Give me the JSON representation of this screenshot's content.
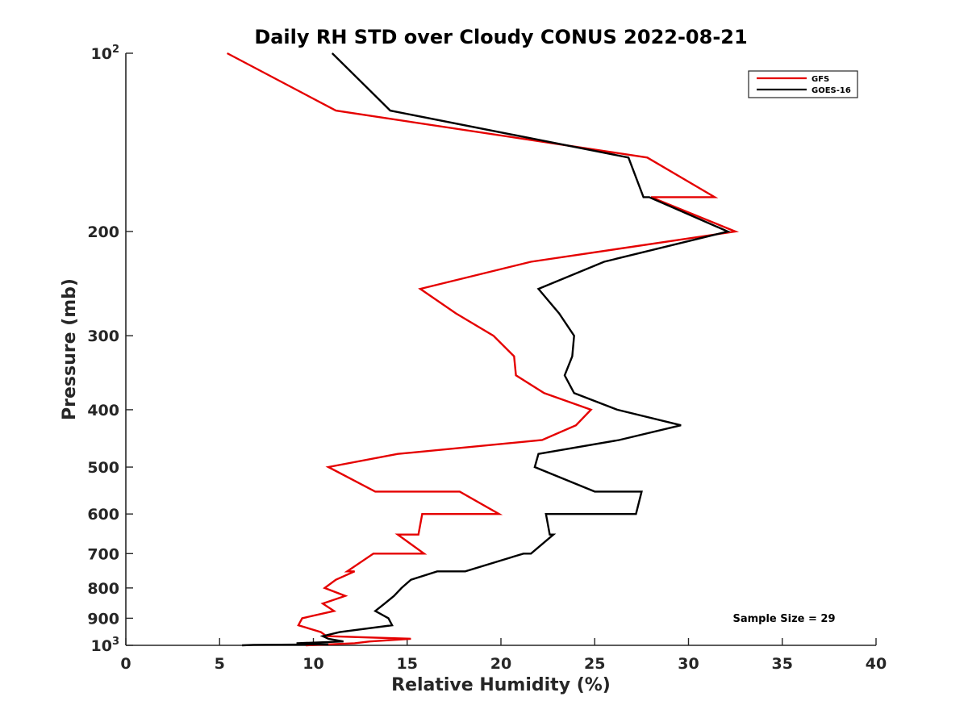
{
  "chart_data": {
    "type": "line",
    "title": "Daily RH STD over Cloudy CONUS 2022-08-21",
    "xlabel": "Relative Humidity (%)",
    "ylabel": "Pressure (mb)",
    "xlim": [
      0,
      40
    ],
    "ylim": [
      100,
      1000
    ],
    "y_scale": "log",
    "y_reversed": true,
    "x_ticks": [
      "0",
      "5",
      "10",
      "15",
      "20",
      "25",
      "30",
      "35",
      "40"
    ],
    "y_ticks": [
      {
        "value": 100,
        "label": "10",
        "sup": "2"
      },
      {
        "value": 200,
        "label": "200"
      },
      {
        "value": 300,
        "label": "300"
      },
      {
        "value": 400,
        "label": "400"
      },
      {
        "value": 500,
        "label": "500"
      },
      {
        "value": 600,
        "label": "600"
      },
      {
        "value": 700,
        "label": "700"
      },
      {
        "value": 800,
        "label": "800"
      },
      {
        "value": 900,
        "label": "900"
      },
      {
        "value": 1000,
        "label": "10",
        "sup": "3"
      }
    ],
    "grid": false,
    "legend_position": "top-right",
    "annotation": "Sample Size = 29",
    "series": [
      {
        "name": "GFS",
        "color": "#e50000",
        "points": [
          {
            "x": 5.4,
            "y": 100
          },
          {
            "x": 11.2,
            "y": 125
          },
          {
            "x": 27.8,
            "y": 150
          },
          {
            "x": 31.4,
            "y": 175
          },
          {
            "x": 28.0,
            "y": 175
          },
          {
            "x": 32.5,
            "y": 200
          },
          {
            "x": 21.6,
            "y": 225
          },
          {
            "x": 15.7,
            "y": 250
          },
          {
            "x": 17.6,
            "y": 275
          },
          {
            "x": 19.6,
            "y": 300
          },
          {
            "x": 20.7,
            "y": 325
          },
          {
            "x": 20.8,
            "y": 350
          },
          {
            "x": 22.3,
            "y": 375
          },
          {
            "x": 24.8,
            "y": 400
          },
          {
            "x": 24.0,
            "y": 425
          },
          {
            "x": 22.2,
            "y": 450
          },
          {
            "x": 14.5,
            "y": 475
          },
          {
            "x": 10.8,
            "y": 500
          },
          {
            "x": 13.3,
            "y": 550
          },
          {
            "x": 17.8,
            "y": 550
          },
          {
            "x": 19.9,
            "y": 600
          },
          {
            "x": 15.8,
            "y": 600
          },
          {
            "x": 15.6,
            "y": 650
          },
          {
            "x": 14.5,
            "y": 650
          },
          {
            "x": 15.9,
            "y": 700
          },
          {
            "x": 13.2,
            "y": 700
          },
          {
            "x": 11.8,
            "y": 750
          },
          {
            "x": 12.2,
            "y": 750
          },
          {
            "x": 11.2,
            "y": 775
          },
          {
            "x": 10.6,
            "y": 800
          },
          {
            "x": 11.7,
            "y": 825
          },
          {
            "x": 10.5,
            "y": 850
          },
          {
            "x": 11.1,
            "y": 875
          },
          {
            "x": 9.4,
            "y": 900
          },
          {
            "x": 9.2,
            "y": 925
          },
          {
            "x": 10.4,
            "y": 950
          },
          {
            "x": 10.7,
            "y": 965
          },
          {
            "x": 15.2,
            "y": 975
          },
          {
            "x": 13.0,
            "y": 985
          },
          {
            "x": 12.2,
            "y": 992
          },
          {
            "x": 9.6,
            "y": 1000
          }
        ]
      },
      {
        "name": "GOES-16",
        "color": "#000000",
        "points": [
          {
            "x": 11.0,
            "y": 100
          },
          {
            "x": 14.1,
            "y": 125
          },
          {
            "x": 26.8,
            "y": 150
          },
          {
            "x": 27.6,
            "y": 175
          },
          {
            "x": 27.9,
            "y": 175
          },
          {
            "x": 32.1,
            "y": 200
          },
          {
            "x": 25.5,
            "y": 225
          },
          {
            "x": 22.0,
            "y": 250
          },
          {
            "x": 23.1,
            "y": 275
          },
          {
            "x": 23.9,
            "y": 300
          },
          {
            "x": 23.8,
            "y": 325
          },
          {
            "x": 23.4,
            "y": 350
          },
          {
            "x": 23.9,
            "y": 375
          },
          {
            "x": 26.2,
            "y": 400
          },
          {
            "x": 29.6,
            "y": 425
          },
          {
            "x": 26.3,
            "y": 450
          },
          {
            "x": 22.0,
            "y": 475
          },
          {
            "x": 21.8,
            "y": 500
          },
          {
            "x": 25.0,
            "y": 550
          },
          {
            "x": 27.5,
            "y": 550
          },
          {
            "x": 27.2,
            "y": 600
          },
          {
            "x": 22.4,
            "y": 600
          },
          {
            "x": 22.6,
            "y": 650
          },
          {
            "x": 22.8,
            "y": 650
          },
          {
            "x": 21.6,
            "y": 700
          },
          {
            "x": 21.2,
            "y": 700
          },
          {
            "x": 18.1,
            "y": 750
          },
          {
            "x": 16.6,
            "y": 750
          },
          {
            "x": 15.2,
            "y": 775
          },
          {
            "x": 14.7,
            "y": 800
          },
          {
            "x": 14.3,
            "y": 825
          },
          {
            "x": 13.8,
            "y": 850
          },
          {
            "x": 13.3,
            "y": 875
          },
          {
            "x": 14.0,
            "y": 900
          },
          {
            "x": 14.2,
            "y": 925
          },
          {
            "x": 11.4,
            "y": 950
          },
          {
            "x": 10.5,
            "y": 965
          },
          {
            "x": 10.8,
            "y": 975
          },
          {
            "x": 11.6,
            "y": 985
          },
          {
            "x": 9.1,
            "y": 992
          },
          {
            "x": 10.8,
            "y": 996
          },
          {
            "x": 6.8,
            "y": 998
          },
          {
            "x": 6.2,
            "y": 1000
          }
        ]
      }
    ]
  }
}
